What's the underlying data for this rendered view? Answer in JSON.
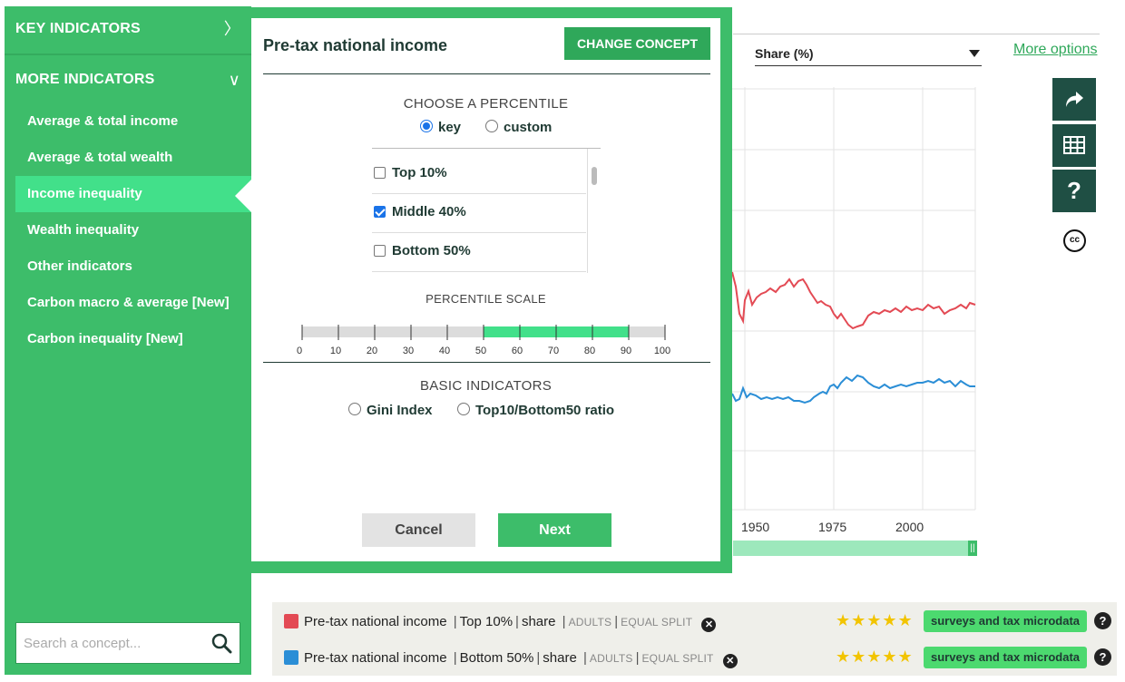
{
  "sidebar": {
    "key_indicators": "KEY INDICATORS",
    "more_indicators": "MORE INDICATORS",
    "items": [
      {
        "label": "Average & total income"
      },
      {
        "label": "Average & total wealth"
      },
      {
        "label": "Income inequality"
      },
      {
        "label": "Wealth inequality"
      },
      {
        "label": "Other indicators"
      },
      {
        "label": "Carbon macro & average [New]"
      },
      {
        "label": "Carbon inequality [New]"
      }
    ],
    "search_placeholder": "Search a concept..."
  },
  "modal": {
    "title": "Pre-tax national income",
    "change_concept": "CHANGE CONCEPT",
    "choose_percentile": "CHOOSE A PERCENTILE",
    "mode_options": {
      "key": "key",
      "custom": "custom"
    },
    "percentiles": [
      {
        "label": "Top 10%",
        "checked": false
      },
      {
        "label": "Middle 40%",
        "checked": true
      },
      {
        "label": "Bottom 50%",
        "checked": false
      }
    ],
    "percentile_scale": "PERCENTILE SCALE",
    "scale_ticks": [
      "0",
      "10",
      "20",
      "30",
      "40",
      "50",
      "60",
      "70",
      "80",
      "90",
      "100"
    ],
    "scale_selected": [
      50,
      90
    ],
    "basic_indicators": "BASIC INDICATORS",
    "basic_options": {
      "gini": "Gini Index",
      "ratio": "Top10/Bottom50 ratio"
    },
    "cancel": "Cancel",
    "next": "Next"
  },
  "chart": {
    "unit_select": "Share (%)",
    "more_options": "More options",
    "x_ticks": [
      "1950",
      "1975",
      "2000"
    ]
  },
  "chart_data": {
    "type": "line",
    "title": "",
    "xlabel": "",
    "ylabel": "",
    "x_ticks": [
      1950,
      1975,
      2000
    ],
    "series": [
      {
        "name": "Pre-tax national income | Top 10% | share",
        "color": "#e34a54"
      },
      {
        "name": "Pre-tax national income | Bottom 50% | share",
        "color": "#2b8ed6"
      }
    ]
  },
  "legend": {
    "rows": [
      {
        "color": "#e34a54",
        "concept": "Pre-tax national income",
        "percentile": "Top 10%",
        "unit": "share",
        "pop": "ADULTS",
        "split": "EQUAL SPLIT",
        "stars": "★★★★★",
        "source": "surveys and tax microdata"
      },
      {
        "color": "#2b8ed6",
        "concept": "Pre-tax national income",
        "percentile": "Bottom 50%",
        "unit": "share",
        "pop": "ADULTS",
        "split": "EQUAL SPLIT",
        "stars": "★★★★★",
        "source": "surveys and tax microdata"
      }
    ]
  },
  "icons": {
    "share": "share-arrow-icon",
    "table": "table-icon",
    "help": "?",
    "cc": "cc"
  }
}
